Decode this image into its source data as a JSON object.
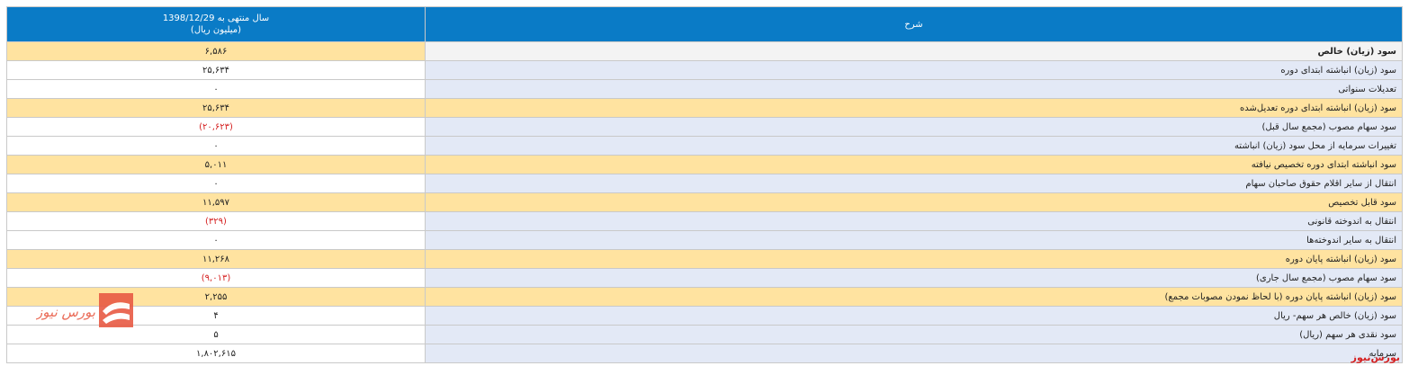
{
  "header": {
    "period_line1": "سال منتهی به 1398/12/29",
    "period_line2": "(میلیون ریال)",
    "description": "شرح"
  },
  "rows": [
    {
      "desc": "سود (زیان) خالص",
      "value": "۶,۵۸۶",
      "negative": false,
      "highlight": true,
      "first": true
    },
    {
      "desc": "سود (زیان) انباشته ابتدای دوره",
      "value": "۲۵,۶۳۴",
      "negative": false,
      "highlight": false
    },
    {
      "desc": "تعدیلات سنواتی",
      "value": "۰",
      "negative": false,
      "highlight": false
    },
    {
      "desc": "سود (زیان) انباشته ابتدای دوره تعدیل‌شده",
      "value": "۲۵,۶۳۴",
      "negative": false,
      "highlight": true
    },
    {
      "desc": "سود سهام مصوب (مجمع سال قبل)",
      "value": "(۲۰,۶۲۳)",
      "negative": true,
      "highlight": false
    },
    {
      "desc": "تغییرات سرمایه از محل سود (زیان) انباشته",
      "value": "۰",
      "negative": false,
      "highlight": false
    },
    {
      "desc": "سود انباشته ابتدای دوره تخصیص نیافته",
      "value": "۵,۰۱۱",
      "negative": false,
      "highlight": true
    },
    {
      "desc": "انتقال از سایر اقلام حقوق صاحبان سهام",
      "value": "۰",
      "negative": false,
      "highlight": false
    },
    {
      "desc": "سود قابل تخصیص",
      "value": "۱۱,۵۹۷",
      "negative": false,
      "highlight": true
    },
    {
      "desc": "انتقال به اندوخته قانونی",
      "value": "(۳۲۹)",
      "negative": true,
      "highlight": false
    },
    {
      "desc": "انتقال به سایر اندوخته‌ها",
      "value": "۰",
      "negative": false,
      "highlight": false
    },
    {
      "desc": "سود (زیان) انباشته پایان دوره",
      "value": "۱۱,۲۶۸",
      "negative": false,
      "highlight": true
    },
    {
      "desc": "سود سهام مصوب (مجمع سال جاری)",
      "value": "(۹,۰۱۳)",
      "negative": true,
      "highlight": false
    },
    {
      "desc": "سود (زیان) انباشته پایان دوره (با لحاظ نمودن مصوبات مجمع)",
      "value": "۲,۲۵۵",
      "negative": false,
      "highlight": true
    },
    {
      "desc": "سود (زیان) خالص هر سهم- ریال",
      "value": "۴",
      "negative": false,
      "highlight": false
    },
    {
      "desc": "سود نقدی هر سهم (ریال)",
      "value": "۵",
      "negative": false,
      "highlight": false
    },
    {
      "desc": "سرمایه",
      "value": "۱,۸۰۲,۶۱۵",
      "negative": false,
      "highlight": false
    }
  ],
  "brand": {
    "logo_text": "بورس نیوز",
    "footer_text": "بورس‌نیوز",
    "accent": "#d52020",
    "header_color": "#0a7bc6",
    "highlight_color": "#ffe3a0"
  }
}
